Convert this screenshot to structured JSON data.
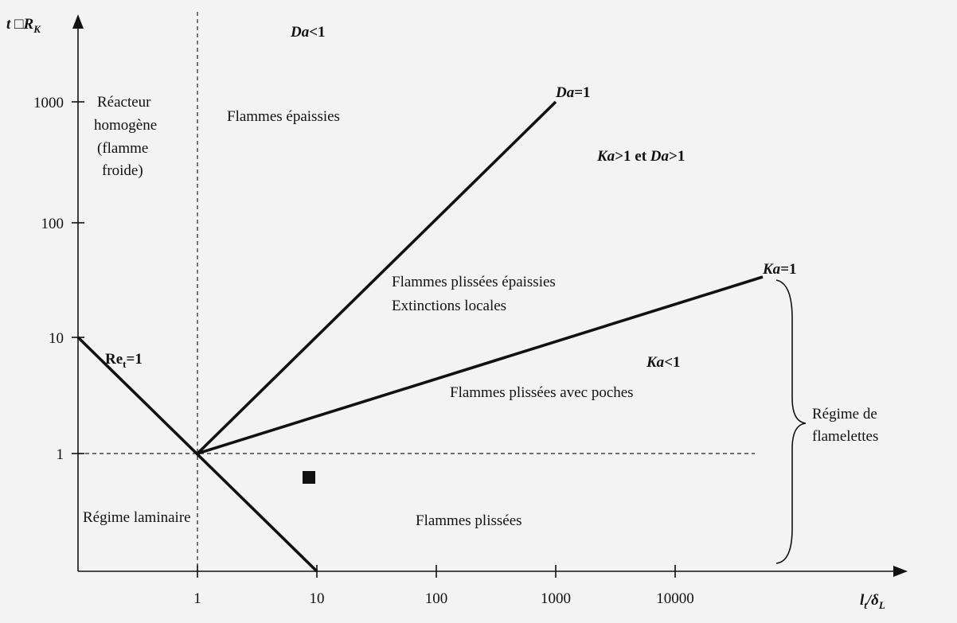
{
  "axes": {
    "y_label": {
      "main": "t □R",
      "sub": "K"
    },
    "x_label": {
      "main": "l",
      "sub": "t",
      "rest": "/δ",
      "sub2": "L"
    },
    "x_ticks": [
      "1",
      "10",
      "100",
      "1000",
      "10000"
    ],
    "y_ticks": [
      "1000",
      "100",
      "10",
      "1"
    ]
  },
  "lines": {
    "da_lt_1": {
      "var": "Da",
      "rest": "<1"
    },
    "da_eq_1": {
      "var": "Da",
      "rest": "=1"
    },
    "ka_da": {
      "var1": "Ka",
      "mid": ">1 et ",
      "var2": "Da",
      "rest": ">1"
    },
    "ka_eq_1": {
      "var": "Ka",
      "rest": "=1"
    },
    "ka_lt_1": {
      "var": "Ka",
      "rest": "<1"
    },
    "re_eq_1": {
      "main": "Re",
      "sub": "t",
      "rest": "=1"
    }
  },
  "regions": {
    "reacteur": [
      "Réacteur",
      "homogène",
      "(flamme",
      "froide)"
    ],
    "epaissies": "Flammes épaissies",
    "plissees_epaissies": [
      "Flammes plissées épaissies",
      "Extinctions locales"
    ],
    "avec_poches": "Flammes plissées avec poches",
    "plissees": "Flammes plissées",
    "laminaire": "Régime laminaire",
    "flamelettes": [
      "Régime de",
      "flamelettes"
    ]
  }
}
